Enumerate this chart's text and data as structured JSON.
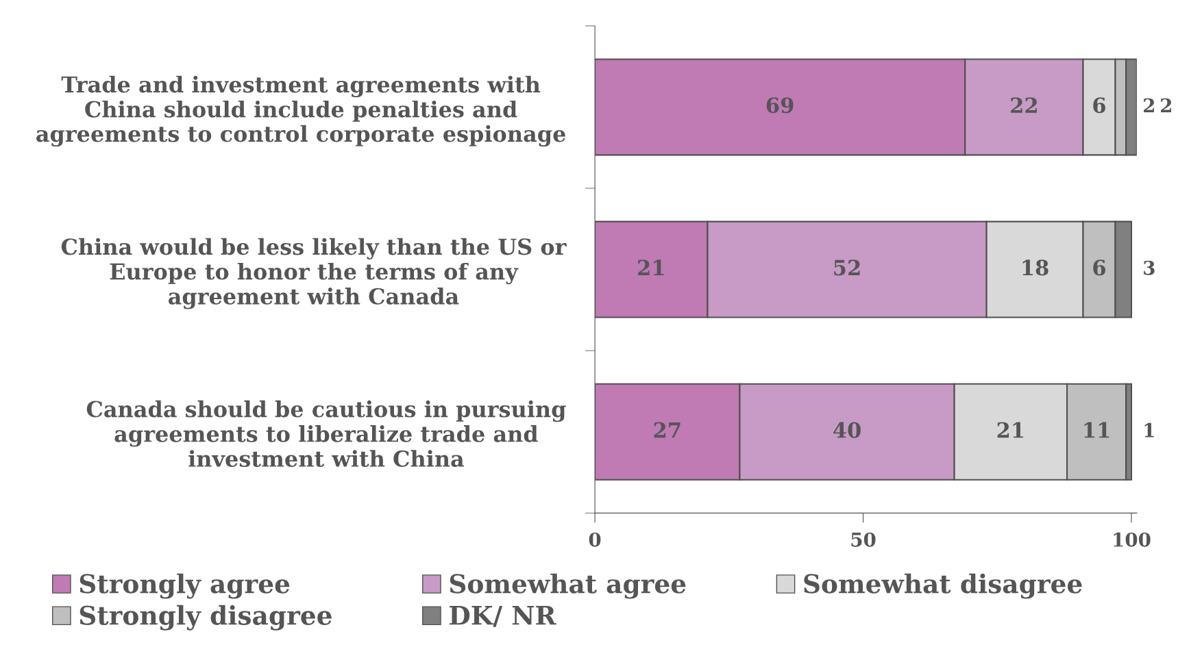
{
  "chart_data": {
    "type": "bar",
    "orientation": "horizontal",
    "stacked": true,
    "data_labels": true,
    "legend": "bottom",
    "grid": false,
    "categories": [
      "Trade and investment agreements with\nChina should include penalties and\nagreements to control corporate espionage",
      "China would be less likely than the US or\nEurope to honor the terms of any\nagreement with Canada",
      "Canada should be cautious in pursuing\nagreements to liberalize trade and\ninvestment with China"
    ],
    "series": [
      {
        "name": "Strongly agree",
        "color": "#c07ab4",
        "values": [
          69,
          21,
          27
        ]
      },
      {
        "name": "Somewhat agree",
        "color": "#c89ac6",
        "values": [
          22,
          52,
          40
        ]
      },
      {
        "name": "Somewhat disagree",
        "color": "#d9d9d9",
        "values": [
          6,
          18,
          21
        ]
      },
      {
        "name": "Strongly disagree",
        "color": "#bfbfbf",
        "values": [
          2,
          6,
          11
        ]
      },
      {
        "name": "DK/ NR",
        "color": "#808080",
        "values": [
          2,
          3,
          1
        ]
      }
    ],
    "xlim": [
      0,
      101
    ],
    "xticks": [
      0,
      50,
      100
    ]
  }
}
